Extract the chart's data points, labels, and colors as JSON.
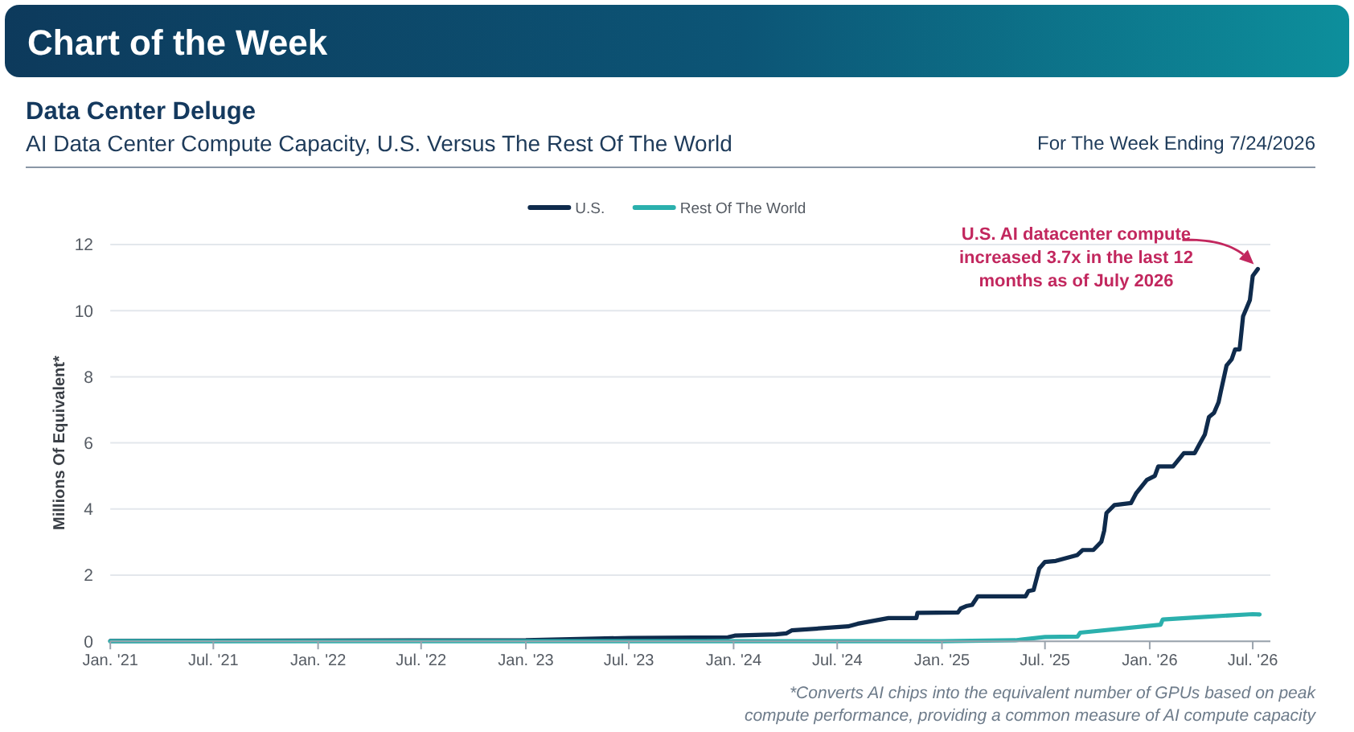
{
  "chart_data": {
    "type": "line",
    "title": "Data Center Deluge",
    "subtitle": "AI Data Center Compute Capacity, U.S. Versus The Rest Of The World",
    "ylabel": "Millions Of Equivalent*",
    "annotations": [
      "Chart of the Week",
      "For The Week Ending 7/24/2026",
      "U.S. AI datacenter compute increased 3.7x in the last 12 months as of July 2026",
      "*Converts AI chips into the equivalent number of GPUs based on peak compute performance, providing a common measure of AI compute capacity"
    ],
    "xlim": [
      "2021-01-01",
      "2026-08-01"
    ],
    "xticks": [
      {
        "value": "2021-01-01",
        "label": "Jan. '21"
      },
      {
        "value": "2021-07-01",
        "label": "Jul. '21"
      },
      {
        "value": "2022-01-01",
        "label": "Jan. '22"
      },
      {
        "value": "2022-07-01",
        "label": "Jul. '22"
      },
      {
        "value": "2023-01-01",
        "label": "Jan. '23"
      },
      {
        "value": "2023-07-01",
        "label": "Jul. '23"
      },
      {
        "value": "2024-01-01",
        "label": "Jan. '24"
      },
      {
        "value": "2024-07-01",
        "label": "Jul. '24"
      },
      {
        "value": "2025-01-01",
        "label": "Jan. '25"
      },
      {
        "value": "2025-07-01",
        "label": "Jul. '25"
      },
      {
        "value": "2026-01-01",
        "label": "Jan. '26"
      },
      {
        "value": "2026-07-01",
        "label": "Jul. '26"
      }
    ],
    "ylim": [
      0,
      12
    ],
    "yticks": [
      0,
      2,
      4,
      6,
      8,
      10,
      12
    ],
    "grid": "y",
    "legend": "top",
    "series": [
      {
        "name": "U.S.",
        "color": "#0f2b4c",
        "x": [
          "2021-01-01",
          "2023-01-01",
          "2023-04-04",
          "2023-07-01",
          "2023-12-22",
          "2024-01-03",
          "2024-03-15",
          "2024-04-03",
          "2024-04-12",
          "2024-07-20",
          "2024-08-06",
          "2024-09-29",
          "2024-11-17",
          "2024-11-19",
          "2025-01-29",
          "2025-02-03",
          "2025-02-14",
          "2025-02-23",
          "2025-03-05",
          "2025-05-28",
          "2025-06-02",
          "2025-06-11",
          "2025-06-21",
          "2025-07-01",
          "2025-07-20",
          "2025-08-27",
          "2025-09-05",
          "2025-09-24",
          "2025-10-08",
          "2025-10-13",
          "2025-10-17",
          "2025-10-31",
          "2025-11-29",
          "2025-12-08",
          "2025-12-27",
          "2026-01-10",
          "2026-01-16",
          "2026-02-11",
          "2026-03-02",
          "2026-03-21",
          "2026-03-30",
          "2026-04-08",
          "2026-04-15",
          "2026-04-24",
          "2026-05-02",
          "2026-05-06",
          "2026-05-16",
          "2026-05-25",
          "2026-05-31",
          "2026-06-08",
          "2026-06-14",
          "2026-06-20",
          "2026-06-26",
          "2026-07-01",
          "2026-07-10"
        ],
        "values": [
          0.01,
          0.03,
          0.07,
          0.1,
          0.12,
          0.17,
          0.21,
          0.24,
          0.33,
          0.45,
          0.53,
          0.7,
          0.7,
          0.86,
          0.87,
          0.99,
          1.07,
          1.1,
          1.36,
          1.36,
          1.52,
          1.55,
          2.2,
          2.4,
          2.43,
          2.61,
          2.76,
          2.76,
          3.01,
          3.34,
          3.88,
          4.12,
          4.18,
          4.47,
          4.88,
          5.0,
          5.29,
          5.29,
          5.69,
          5.69,
          5.98,
          6.26,
          6.78,
          6.91,
          7.23,
          7.56,
          8.34,
          8.53,
          8.83,
          8.83,
          9.83,
          10.07,
          10.32,
          11.05,
          11.26
        ]
      },
      {
        "name": "Rest Of The World",
        "color": "#2bb0ad",
        "x": [
          "2021-01-01",
          "2025-01-01",
          "2025-05-10",
          "2025-07-01",
          "2025-08-27",
          "2025-09-01",
          "2026-01-20",
          "2026-01-24",
          "2026-04-08",
          "2026-07-01",
          "2026-07-13"
        ],
        "values": [
          0.0,
          0.0,
          0.03,
          0.13,
          0.14,
          0.26,
          0.5,
          0.66,
          0.74,
          0.82,
          0.81
        ]
      }
    ]
  }
}
